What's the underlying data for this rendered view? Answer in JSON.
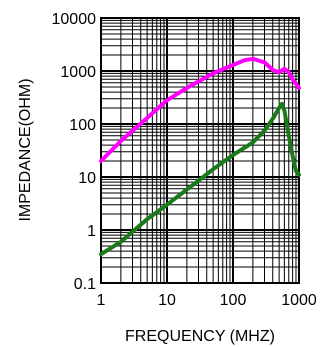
{
  "chart_data": {
    "type": "line",
    "xscale": "log",
    "yscale": "log",
    "xlim": [
      1,
      1000
    ],
    "ylim": [
      0.1,
      10000
    ],
    "xlabel": "FREQUENCY (MHZ)",
    "ylabel": "IMPEDANCE(OHM)",
    "x_ticks": [
      {
        "value": 1,
        "label": "1"
      },
      {
        "value": 10,
        "label": "10"
      },
      {
        "value": 100,
        "label": "100"
      },
      {
        "value": 1000,
        "label": "1000"
      }
    ],
    "y_ticks": [
      {
        "value": 0.1,
        "label": "0.1"
      },
      {
        "value": 1,
        "label": "1"
      },
      {
        "value": 10,
        "label": "10"
      },
      {
        "value": 100,
        "label": "100"
      },
      {
        "value": 1000,
        "label": "1000"
      },
      {
        "value": 10000,
        "label": "10000"
      }
    ],
    "grid": true,
    "series": [
      {
        "color": "#ff00ff",
        "points": [
          [
            1,
            20
          ],
          [
            2,
            48
          ],
          [
            5,
            130
          ],
          [
            10,
            280
          ],
          [
            20,
            480
          ],
          [
            50,
            900
          ],
          [
            100,
            1300
          ],
          [
            150,
            1600
          ],
          [
            200,
            1700
          ],
          [
            300,
            1450
          ],
          [
            400,
            1050
          ],
          [
            500,
            950
          ],
          [
            600,
            1100
          ],
          [
            700,
            950
          ],
          [
            800,
            700
          ],
          [
            1000,
            480
          ]
        ]
      },
      {
        "color": "#1a7a1a",
        "points": [
          [
            1,
            0.35
          ],
          [
            2,
            0.6
          ],
          [
            5,
            1.6
          ],
          [
            10,
            3.0
          ],
          [
            20,
            5.8
          ],
          [
            50,
            14
          ],
          [
            100,
            26
          ],
          [
            200,
            45
          ],
          [
            300,
            75
          ],
          [
            400,
            125
          ],
          [
            500,
            200
          ],
          [
            550,
            240
          ],
          [
            600,
            180
          ],
          [
            700,
            60
          ],
          [
            800,
            25
          ],
          [
            900,
            13
          ],
          [
            1000,
            11
          ]
        ]
      }
    ]
  }
}
